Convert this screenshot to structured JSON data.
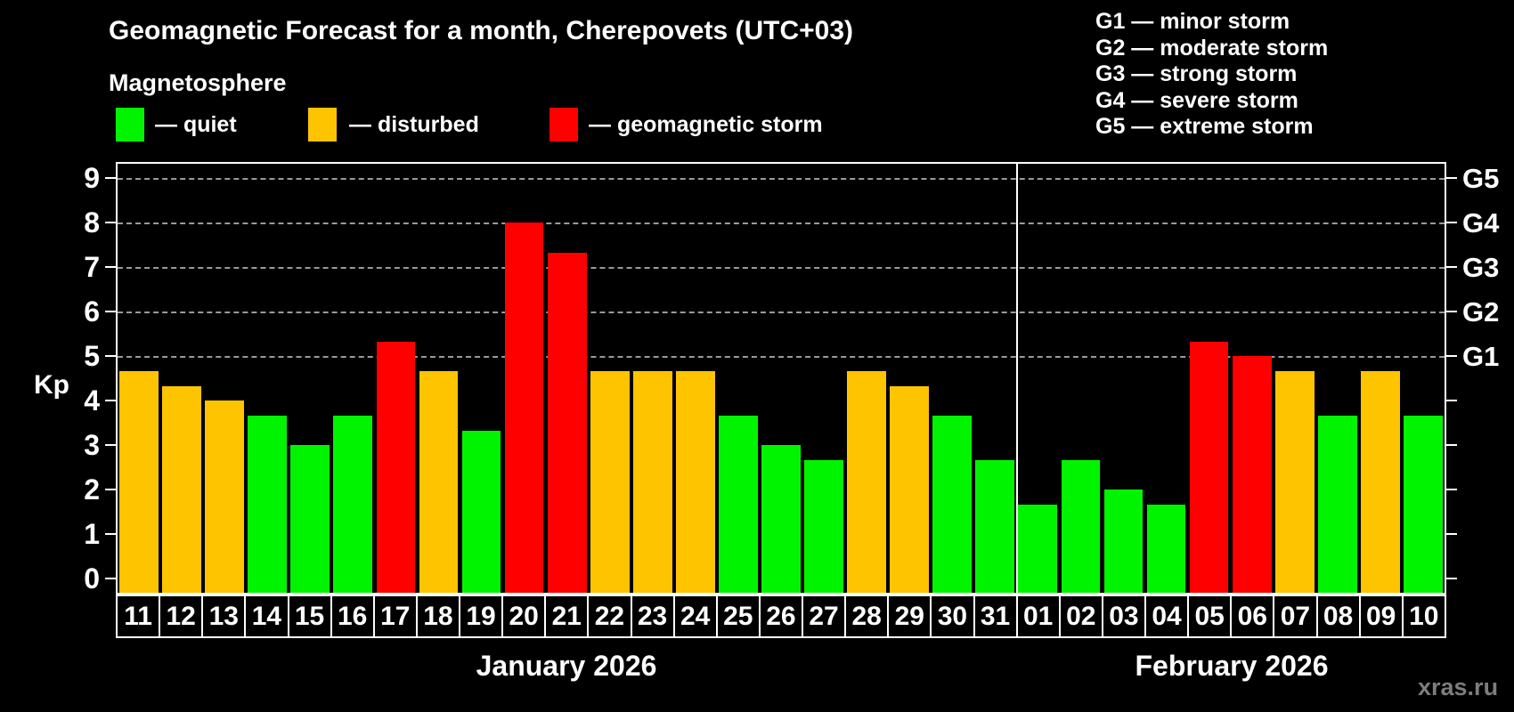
{
  "header": {
    "title": "Geomagnetic Forecast for a month, Cherepovets (UTC+03)",
    "subtitle": "Magnetosphere"
  },
  "legend": {
    "items": [
      {
        "key": "quiet",
        "label": "— quiet"
      },
      {
        "key": "disturbed",
        "label": "— disturbed"
      },
      {
        "key": "storm",
        "label": "— geomagnetic storm"
      }
    ]
  },
  "g_legend": {
    "lines": [
      "G1 — minor storm",
      "G2 — moderate storm",
      "G3 — strong storm",
      "G4 — severe storm",
      "G5 — extreme storm"
    ]
  },
  "axis": {
    "y_label": "Kp",
    "y_ticks": [
      0,
      1,
      2,
      3,
      4,
      5,
      6,
      7,
      8,
      9
    ],
    "right_labels": [
      {
        "kp": 5,
        "label": "G1"
      },
      {
        "kp": 6,
        "label": "G2"
      },
      {
        "kp": 7,
        "label": "G3"
      },
      {
        "kp": 8,
        "label": "G4"
      },
      {
        "kp": 9,
        "label": "G5"
      }
    ],
    "gridline_levels": [
      5,
      6,
      7,
      8,
      9
    ]
  },
  "colors": {
    "quiet": "#00F400",
    "disturbed": "#FFC400",
    "storm": "#FF0000",
    "background": "#000000",
    "grid": "#9A9A9A"
  },
  "months": [
    {
      "label": "January 2026",
      "days": 21
    },
    {
      "label": "February 2026",
      "days": 10
    }
  ],
  "watermark": "xras.ru",
  "chart_data": {
    "type": "bar",
    "title": "Geomagnetic Forecast for a month, Cherepovets (UTC+03)",
    "xlabel": "",
    "ylabel": "Kp",
    "ylim": [
      0,
      9
    ],
    "grid": "dashed horizontal at Kp 5-9 (G1-G5 storm levels)",
    "legend_position": "top-left colors, top-right G scale",
    "month_split_index": 21,
    "categories": [
      "11",
      "12",
      "13",
      "14",
      "15",
      "16",
      "17",
      "18",
      "19",
      "20",
      "21",
      "22",
      "23",
      "24",
      "25",
      "26",
      "27",
      "28",
      "29",
      "30",
      "31",
      "01",
      "02",
      "03",
      "04",
      "05",
      "06",
      "07",
      "08",
      "09",
      "10"
    ],
    "values": [
      4.67,
      4.33,
      4.0,
      3.67,
      3.0,
      3.67,
      5.33,
      4.67,
      3.33,
      8.0,
      7.33,
      4.67,
      4.67,
      4.67,
      3.67,
      3.0,
      2.67,
      4.67,
      4.33,
      3.67,
      2.67,
      1.67,
      2.67,
      2.0,
      1.67,
      5.33,
      5.0,
      4.67,
      3.67,
      4.67,
      3.67
    ],
    "statuses": [
      "disturbed",
      "disturbed",
      "disturbed",
      "quiet",
      "quiet",
      "quiet",
      "storm",
      "disturbed",
      "quiet",
      "storm",
      "storm",
      "disturbed",
      "disturbed",
      "disturbed",
      "quiet",
      "quiet",
      "quiet",
      "disturbed",
      "disturbed",
      "quiet",
      "quiet",
      "quiet",
      "quiet",
      "quiet",
      "quiet",
      "storm",
      "storm",
      "disturbed",
      "quiet",
      "disturbed",
      "quiet"
    ]
  }
}
